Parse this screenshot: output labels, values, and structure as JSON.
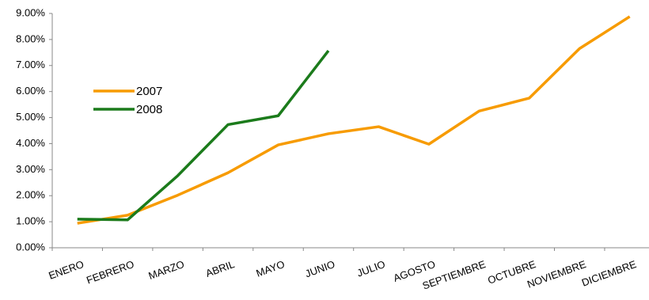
{
  "chart_data": {
    "type": "line",
    "categories": [
      "ENERO",
      "FEBRERO",
      "MARZO",
      "ABRIL",
      "MAYO",
      "JUNIO",
      "JULIO",
      "AGOSTO",
      "SEPTIEMBRE",
      "OCTUBRE",
      "NOVIEMBRE",
      "DICIEMBRE"
    ],
    "series": [
      {
        "name": "2007",
        "color": "#f79b00",
        "values": [
          0.94,
          1.25,
          2.02,
          2.88,
          3.95,
          4.38,
          4.65,
          3.98,
          5.25,
          5.75,
          7.65,
          8.88
        ]
      },
      {
        "name": "2008",
        "color": "#1b7b1b",
        "values": [
          1.1,
          1.07,
          2.77,
          4.73,
          5.07,
          7.57,
          null,
          null,
          null,
          null,
          null,
          null
        ]
      }
    ],
    "ylim": [
      0,
      9
    ],
    "yticks": [
      {
        "value": 0,
        "label": "0.00%"
      },
      {
        "value": 1,
        "label": "1.00%"
      },
      {
        "value": 2,
        "label": "2.00%"
      },
      {
        "value": 3,
        "label": "3.00%"
      },
      {
        "value": 4,
        "label": "4.00%"
      },
      {
        "value": 5,
        "label": "5.00%"
      },
      {
        "value": 6,
        "label": "6.00%"
      },
      {
        "value": 7,
        "label": "7.00%"
      },
      {
        "value": 8,
        "label": "8.00%"
      },
      {
        "value": 9,
        "label": "9.00%"
      }
    ],
    "grid": false,
    "legend": "upper-left"
  }
}
